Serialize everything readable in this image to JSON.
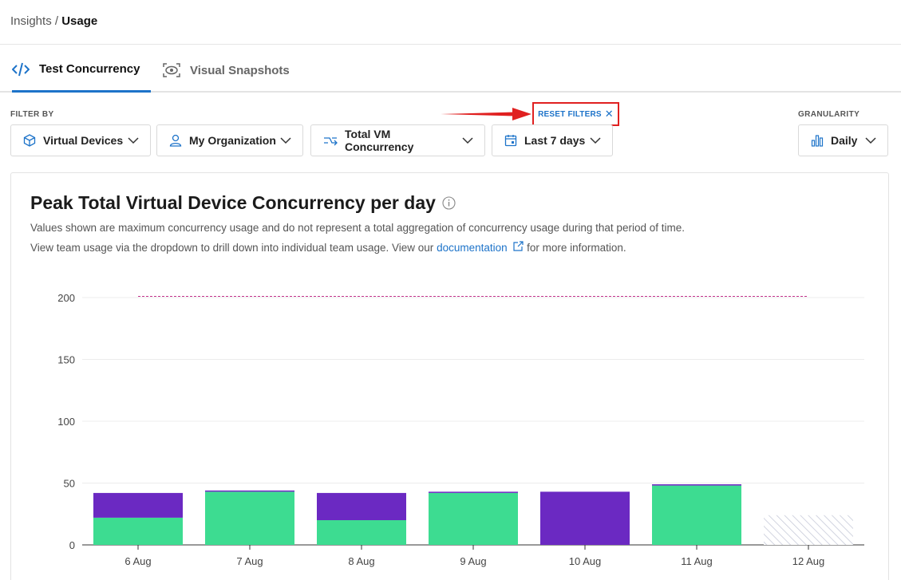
{
  "breadcrumb": {
    "parent": "Insights",
    "separator": " / ",
    "current": "Usage"
  },
  "tabs": [
    {
      "label": "Test Concurrency",
      "active": true,
      "icon": "code-icon"
    },
    {
      "label": "Visual Snapshots",
      "active": false,
      "icon": "eye-snapshot-icon"
    }
  ],
  "filters": {
    "label": "FILTER BY",
    "reset_label": "RESET FILTERS",
    "device_type": "Virtual Devices",
    "organization": "My Organization",
    "metric": "Total VM Concurrency",
    "period": "Last 7 days"
  },
  "granularity": {
    "label": "GRANULARITY",
    "value": "Daily"
  },
  "card": {
    "title": "Peak Total Virtual Device Concurrency per day",
    "desc1": "Values shown are maximum concurrency usage and do not represent a total aggregation of concurrency usage during that period of time.",
    "desc2_prefix": "View team usage via the dropdown to drill down into individual team usage. View our ",
    "desc2_link": "documentation",
    "desc2_suffix": " for more information."
  },
  "colors": {
    "accent": "#1d73c9",
    "green": "#3ddc91",
    "purple": "#6b29c2",
    "limit_line": "#c2338c",
    "highlight": "#e02020"
  },
  "chart_data": {
    "type": "bar",
    "stacked": true,
    "categories": [
      "6 Aug",
      "7 Aug",
      "8 Aug",
      "9 Aug",
      "10 Aug",
      "11 Aug",
      "12 Aug"
    ],
    "series": [
      {
        "color": "green",
        "values": [
          22,
          43,
          20,
          42,
          0,
          48,
          null
        ]
      },
      {
        "color": "purple",
        "values": [
          20,
          1,
          22,
          1,
          43,
          1,
          null
        ]
      }
    ],
    "partial_day": {
      "category": "12 Aug",
      "value": 24,
      "style": "hatched"
    },
    "limit_line": {
      "value": 201,
      "style": "dashed"
    },
    "yticks": [
      0,
      50,
      100,
      150,
      200
    ],
    "ylim": [
      0,
      200
    ],
    "grid": true
  }
}
